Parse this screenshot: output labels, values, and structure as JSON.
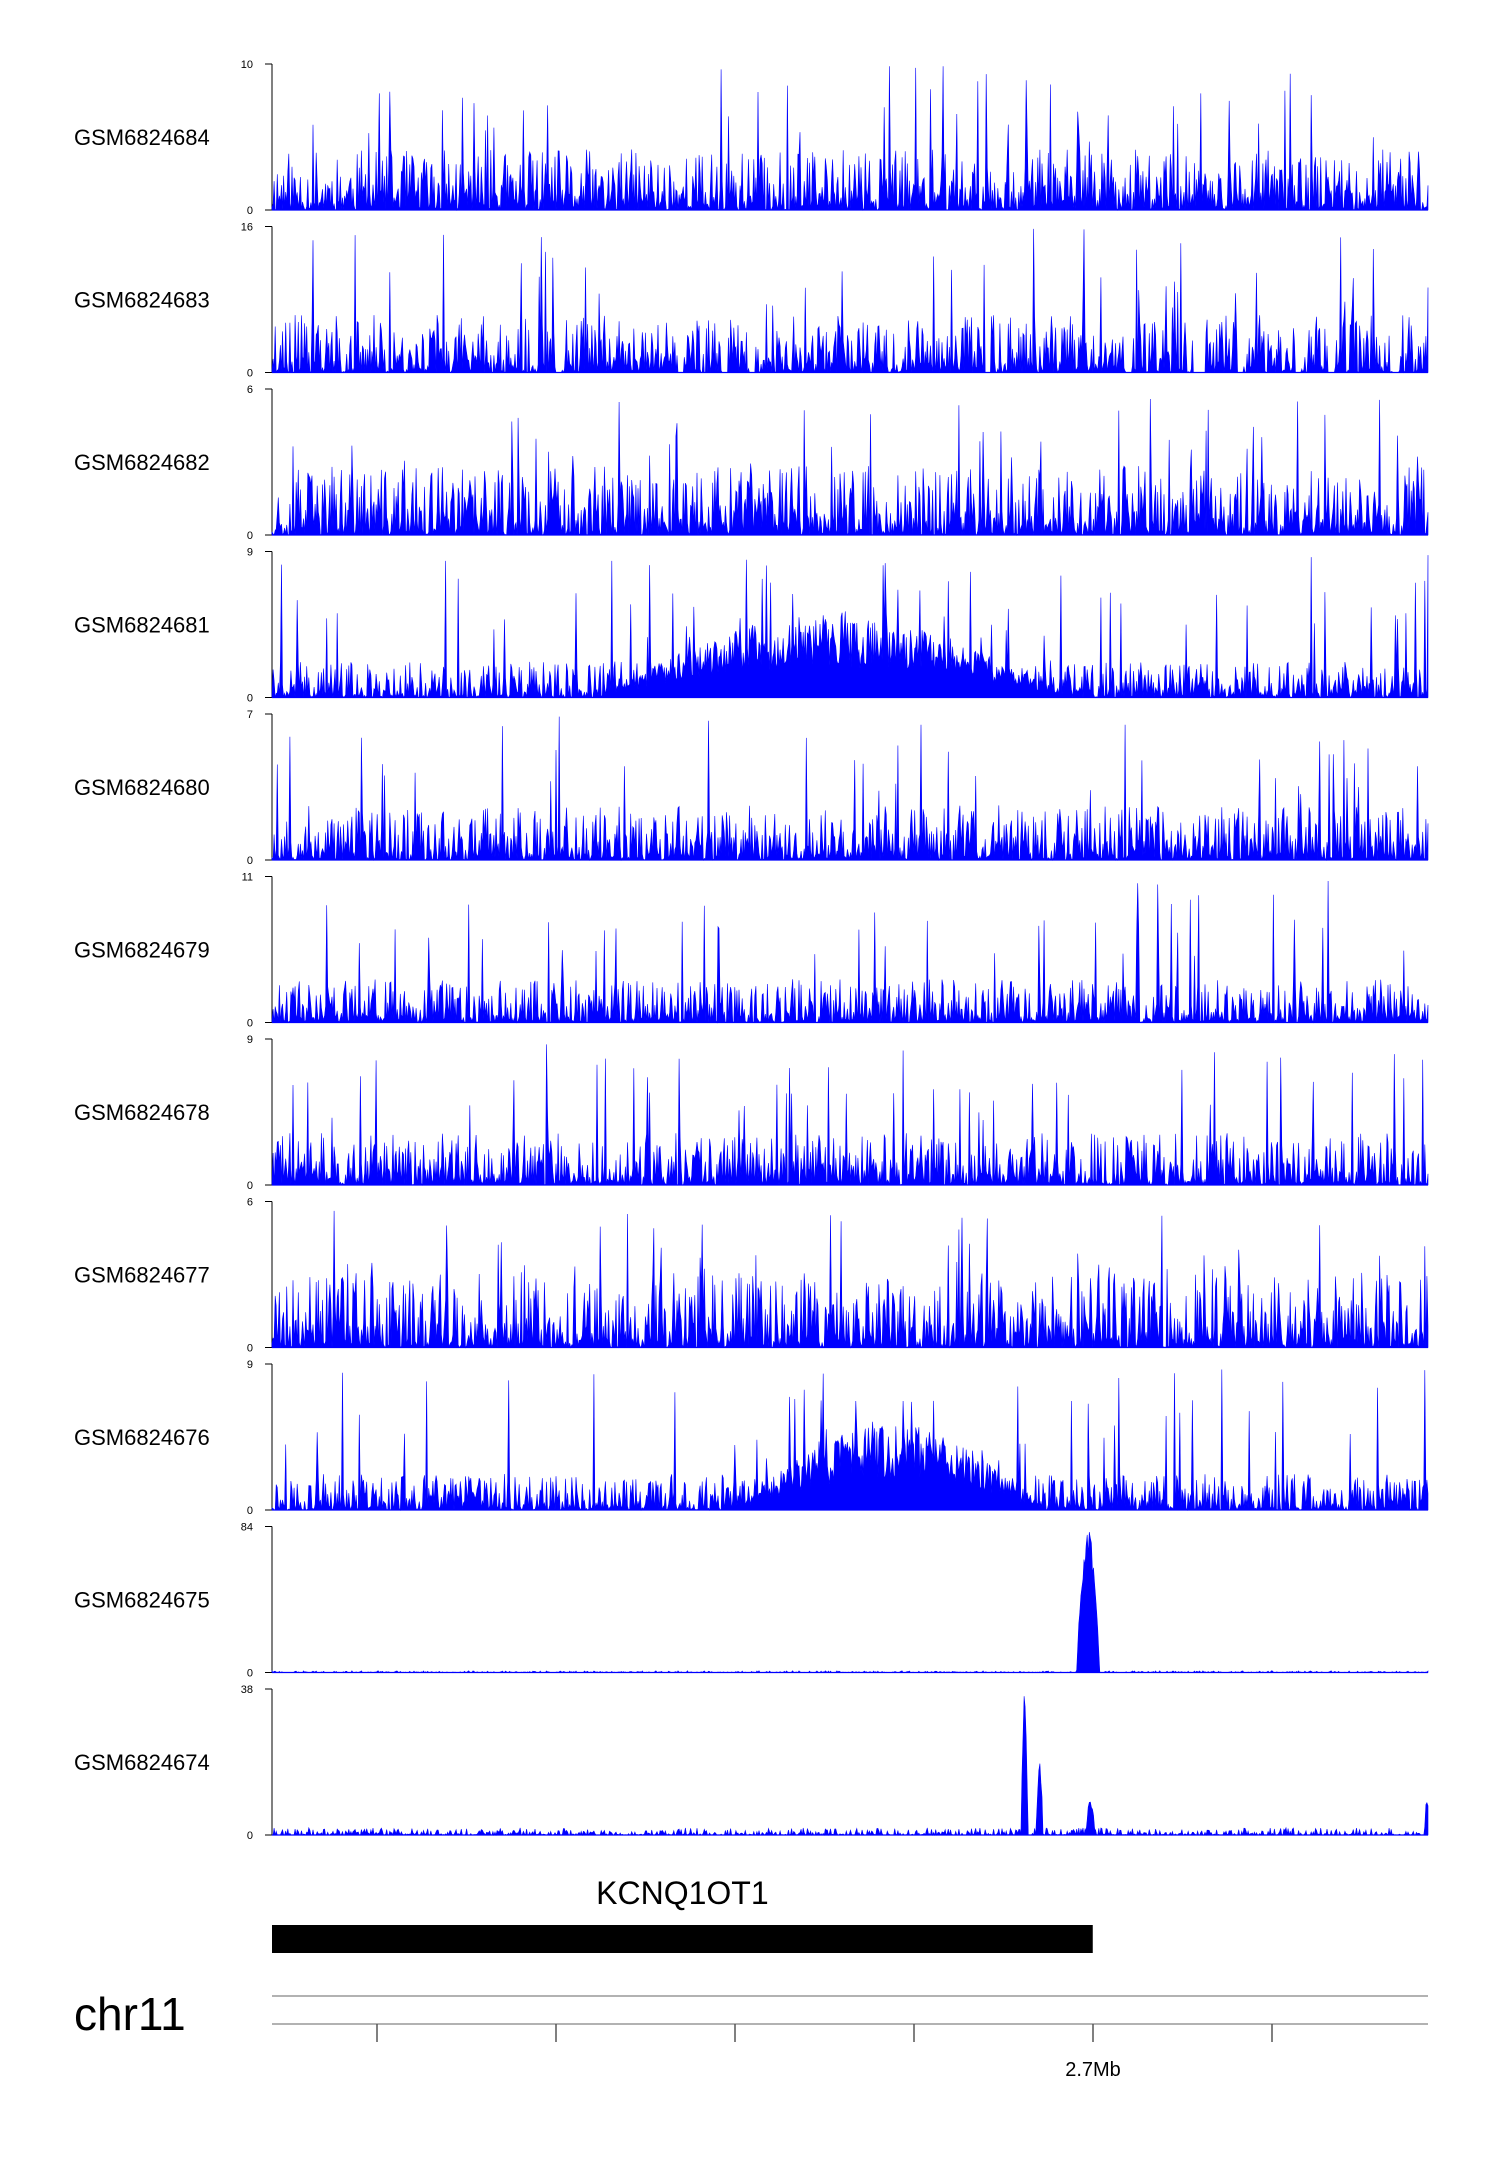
{
  "chart_data": {
    "type": "area",
    "x_axis": {
      "tick_labels": [
        "2.7Mb"
      ],
      "tick_count": 7,
      "labeled_tick_index": 4
    },
    "series_color": "#0000ff",
    "tracks": [
      {
        "name": "GSM6824684",
        "ymin": 0,
        "ymax": 10,
        "pattern": "noise",
        "seed": 11,
        "fill": 0.42
      },
      {
        "name": "GSM6824683",
        "ymin": 0,
        "ymax": 16,
        "pattern": "noise_gaps",
        "seed": 23,
        "fill": 0.4
      },
      {
        "name": "GSM6824682",
        "ymin": 0,
        "ymax": 6,
        "pattern": "noise",
        "seed": 37,
        "fill": 0.48
      },
      {
        "name": "GSM6824681",
        "ymin": 0,
        "ymax": 9,
        "pattern": "hump",
        "seed": 41,
        "fill": 0.25,
        "hump_start": 0.28,
        "hump_end": 0.69,
        "hump_peak": 0.58
      },
      {
        "name": "GSM6824680",
        "ymin": 0,
        "ymax": 7,
        "pattern": "noise",
        "seed": 53,
        "fill": 0.38
      },
      {
        "name": "GSM6824679",
        "ymin": 0,
        "ymax": 11,
        "pattern": "noise",
        "seed": 61,
        "fill": 0.3
      },
      {
        "name": "GSM6824678",
        "ymin": 0,
        "ymax": 9,
        "pattern": "noise",
        "seed": 73,
        "fill": 0.36
      },
      {
        "name": "GSM6824677",
        "ymin": 0,
        "ymax": 6,
        "pattern": "noise",
        "seed": 87,
        "fill": 0.52
      },
      {
        "name": "GSM6824676",
        "ymin": 0,
        "ymax": 9,
        "pattern": "hump",
        "seed": 97,
        "fill": 0.25,
        "hump_start": 0.4,
        "hump_end": 0.67,
        "hump_peak": 0.6
      },
      {
        "name": "GSM6824675",
        "ymin": 0,
        "ymax": 84,
        "pattern": "peak",
        "seed": 101,
        "fill": 0.012,
        "peaks": [
          {
            "pos": 0.706,
            "width": 0.01,
            "height": 1.0
          }
        ]
      },
      {
        "name": "GSM6824674",
        "ymin": 0,
        "ymax": 38,
        "pattern": "peak",
        "seed": 113,
        "fill": 0.05,
        "peaks": [
          {
            "pos": 0.651,
            "width": 0.003,
            "height": 1.0
          },
          {
            "pos": 0.664,
            "width": 0.003,
            "height": 0.52
          },
          {
            "pos": 0.708,
            "width": 0.004,
            "height": 0.25
          },
          {
            "pos": 0.999,
            "width": 0.002,
            "height": 0.28
          }
        ]
      }
    ],
    "gene": {
      "name": "KCNQ1OT1",
      "start_frac": 0.0,
      "end_frac": 0.71
    },
    "chromosome": "chr11"
  }
}
